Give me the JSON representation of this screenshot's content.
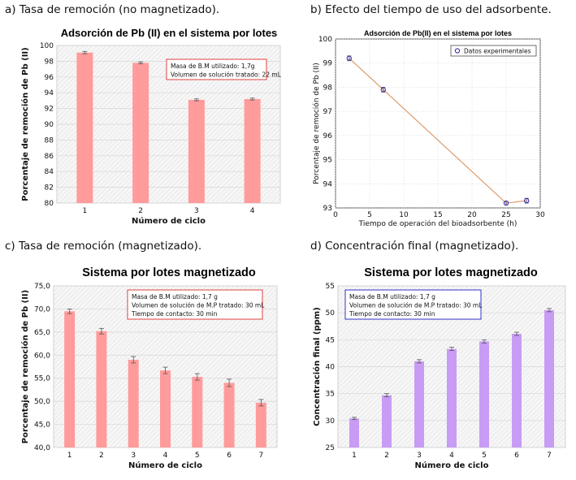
{
  "captions": {
    "a": "a) Tasa de remoción (no magnetizado).",
    "b": "b) Efecto del tiempo de uso del adsorbente.",
    "c": "c) Tasa de remoción (magnetizado).",
    "d": "d) Concentración final (magnetizado)."
  },
  "colors": {
    "bar_red": "#ff9b9b",
    "bar_purple": "#c89cf4",
    "line": "#d98a50",
    "marker": "#3a2aa8",
    "box_red": "#e04040",
    "box_blue": "#3030c8"
  },
  "chart_data": [
    {
      "id": "a",
      "type": "bar",
      "title": "Adsorción de Pb (II) en el sistema por lotes",
      "xlabel": "Número de ciclo",
      "ylabel": "Porcentaje de  remoción de Pb (II)",
      "categories": [
        "1",
        "2",
        "3",
        "4"
      ],
      "values": [
        99.1,
        97.8,
        93.1,
        93.2
      ],
      "errors": [
        0.15,
        0.12,
        0.12,
        0.12
      ],
      "ylim": [
        80,
        100
      ],
      "yticks": [
        "80",
        "82",
        "84",
        "86",
        "88",
        "90",
        "92",
        "94",
        "96",
        "98",
        "100"
      ],
      "annotation": [
        "Masa de B.M utilizado: 1,7g",
        "Volumen de solución tratado: 22 mL"
      ]
    },
    {
      "id": "b",
      "type": "line",
      "title": "Adsorción de Pb(II) en el sistema por lotes",
      "xlabel": "Tiempo de operación del bioadsorbente (h)",
      "ylabel": "Porcentaje de remoción de Pb (II)",
      "x": [
        2,
        7,
        25,
        28
      ],
      "y": [
        99.2,
        97.9,
        93.2,
        93.3
      ],
      "errors": [
        0.1,
        0.1,
        0.07,
        0.1
      ],
      "xlim": [
        0,
        30
      ],
      "ylim": [
        93,
        100
      ],
      "xticks": [
        "0",
        "5",
        "10",
        "15",
        "20",
        "25",
        "30"
      ],
      "yticks": [
        "93",
        "94",
        "95",
        "96",
        "97",
        "98",
        "99",
        "100"
      ],
      "legend": "Datos experimentales",
      "legend_position": "top-right"
    },
    {
      "id": "c",
      "type": "bar",
      "title": "Sistema por lotes magnetizado",
      "xlabel": "Número de ciclo",
      "ylabel": "Porcentaje de  remoción de Pb (II)",
      "categories": [
        "1",
        "2",
        "3",
        "4",
        "5",
        "6",
        "7"
      ],
      "values": [
        69.5,
        65.2,
        59.0,
        56.7,
        55.3,
        54.0,
        49.7
      ],
      "errors": [
        0.5,
        0.6,
        0.7,
        0.7,
        0.7,
        0.8,
        0.7
      ],
      "ylim": [
        40,
        75
      ],
      "yticks": [
        "40,0",
        "45,0",
        "50,0",
        "55,0",
        "60,0",
        "65,0",
        "70,0",
        "75,0"
      ],
      "annotation": [
        "Masa de B.M utilizado: 1,7 g",
        "Volumen de solución de M.P tratado: 30 mL",
        "Tiempo de contacto: 30 min"
      ]
    },
    {
      "id": "d",
      "type": "bar",
      "title": "Sistema por lotes magnetizado",
      "xlabel": "Número de ciclo",
      "ylabel": "Concentración final (ppm)",
      "categories": [
        "1",
        "2",
        "3",
        "4",
        "5",
        "6",
        "7"
      ],
      "values": [
        30.4,
        34.7,
        41.0,
        43.3,
        44.7,
        46.1,
        50.5
      ],
      "errors": [
        0.2,
        0.3,
        0.3,
        0.3,
        0.3,
        0.3,
        0.3
      ],
      "ylim": [
        25,
        55
      ],
      "yticks": [
        "25",
        "30",
        "35",
        "40",
        "45",
        "50",
        "55"
      ],
      "annotation": [
        "Masa de B.M utilizado: 1,7 g",
        "Volumen de solución de M.P tratado: 30 mL",
        "Tiempo de contacto: 30 min"
      ]
    }
  ]
}
